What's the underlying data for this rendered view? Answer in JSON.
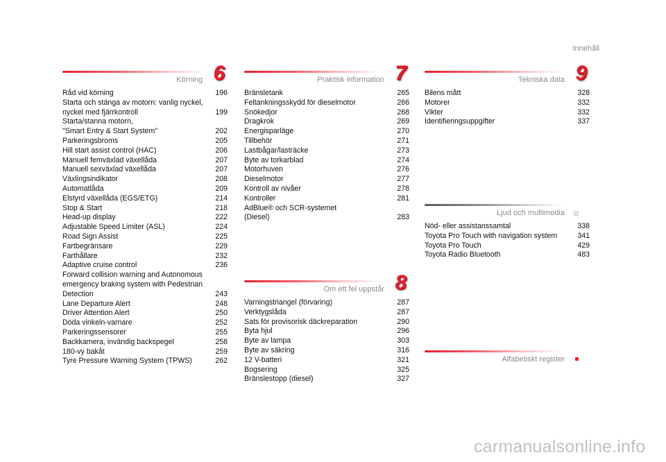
{
  "header": {
    "title": "Innehåll"
  },
  "sections": {
    "korning": {
      "title": "Körning",
      "number": "6",
      "entries": [
        {
          "label": "Råd vid körning",
          "page": "196"
        },
        {
          "label": "Starta och stänga av motorn: vanlig nyckel,\n    nyckel med fjärrkontroll",
          "page": "199"
        },
        {
          "label": "Starta/stanna motorn,\n    \"Smart Entry & Start System\"",
          "page": "202"
        },
        {
          "label": "Parkeringsbroms",
          "page": "205"
        },
        {
          "label": "Hill start assist control (HAC)",
          "page": "206"
        },
        {
          "label": "Manuell femväxlad växellåda",
          "page": "207"
        },
        {
          "label": "Manuell sexväxlad växellåda",
          "page": "207"
        },
        {
          "label": "Växlingsindikator",
          "page": "208"
        },
        {
          "label": "Automatlåda",
          "page": "209"
        },
        {
          "label": "Elstyrd växellåda (EGS/ETG)",
          "page": "214"
        },
        {
          "label": "Stop & Start",
          "page": "218"
        },
        {
          "label": "Head-up display",
          "page": "222"
        },
        {
          "label": "Adjustable Speed Limiter (ASL)",
          "page": "224"
        },
        {
          "label": "Road Sign Assist",
          "page": "225"
        },
        {
          "label": "Fartbegränsare",
          "page": "229"
        },
        {
          "label": "Farthållare",
          "page": "232"
        },
        {
          "label": "Adaptive cruise control",
          "page": "236"
        },
        {
          "label": "Forward collision warning and Autonomous\n    emergency braking system with Pedestrian\n    Detection",
          "page": "243"
        },
        {
          "label": "Lane Departure Alert",
          "page": "248"
        },
        {
          "label": "Driver Attention Alert",
          "page": "250"
        },
        {
          "label": "Döda vinkeln-varnare",
          "page": "252"
        },
        {
          "label": "Parkeringssensorer",
          "page": "255"
        },
        {
          "label": "Backkamera, invändig backspegel",
          "page": "258"
        },
        {
          "label": "180-vy bakåt",
          "page": "259"
        },
        {
          "label": "Tyre Pressure Warning System (TPWS)",
          "page": "262"
        }
      ]
    },
    "praktisk": {
      "title": "Praktisk information",
      "number": "7",
      "entries": [
        {
          "label": "Bränsletank",
          "page": "265"
        },
        {
          "label": "Feltankningsskydd för dieselmotor",
          "page": "266"
        },
        {
          "label": "Snökedjor",
          "page": "268"
        },
        {
          "label": "Dragkrok",
          "page": "269"
        },
        {
          "label": "Energisparläge",
          "page": "270"
        },
        {
          "label": "Tillbehör",
          "page": "271"
        },
        {
          "label": "Lastbågar/lasträcke",
          "page": "273"
        },
        {
          "label": "Byte av torkarblad",
          "page": "274"
        },
        {
          "label": "Motorhuven",
          "page": "276"
        },
        {
          "label": "Dieselmotor",
          "page": "277"
        },
        {
          "label": "Kontroll av nivåer",
          "page": "278"
        },
        {
          "label": "Kontroller",
          "page": "281"
        },
        {
          "label": "AdBlue® och SCR-systemet\n    (Diesel)",
          "page": "283"
        }
      ]
    },
    "fel": {
      "title": "Om ett fel uppstår",
      "number": "8",
      "entries": [
        {
          "label": "Varningstriangel (förvaring)",
          "page": "287"
        },
        {
          "label": "Verktygslåda",
          "page": "287"
        },
        {
          "label": "Sats för provisorisk däckreparation",
          "page": "290"
        },
        {
          "label": "Byta hjul",
          "page": "296"
        },
        {
          "label": "Byte av lampa",
          "page": "303"
        },
        {
          "label": "Byte av säkring",
          "page": "316"
        },
        {
          "label": "12 V-batteri",
          "page": "321"
        },
        {
          "label": "Bogsering",
          "page": "325"
        },
        {
          "label": "Bränslestopp (diesel)",
          "page": "327"
        }
      ]
    },
    "tekniska": {
      "title": "Tekniska data",
      "number": "9",
      "entries": [
        {
          "label": "Bilens mått",
          "page": "328"
        },
        {
          "label": "Motorer",
          "page": "332"
        },
        {
          "label": "Vikter",
          "page": "332"
        },
        {
          "label": "Identifieringsuppgifter",
          "page": "337"
        }
      ]
    },
    "ljud": {
      "title": "Ljud och multimedia",
      "entries": [
        {
          "label": "Nöd- eller assistanssamtal",
          "page": "338"
        },
        {
          "label": "Toyota Pro Touch with navigation system",
          "page": "341"
        },
        {
          "label": "Toyota Pro Touch",
          "page": "429"
        },
        {
          "label": "Toyota Radio Bluetooth",
          "page": "483"
        }
      ]
    },
    "alfabetiskt": {
      "title": "Alfabetiskt register"
    }
  },
  "footer": {
    "watermark": "carmanualsonline.info"
  }
}
